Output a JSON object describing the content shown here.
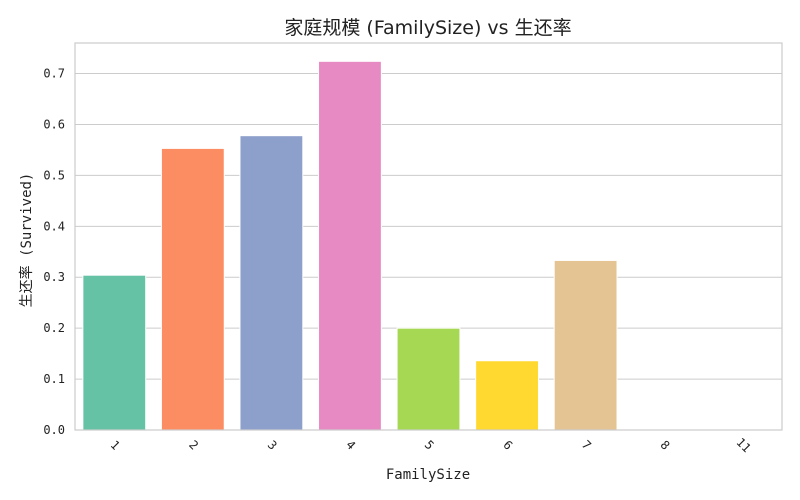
{
  "chart_data": {
    "type": "bar",
    "title": "家庭规模 (FamilySize) vs 生还率",
    "xlabel": "FamilySize",
    "ylabel": "生还率 (Survived)",
    "categories": [
      "1",
      "2",
      "3",
      "4",
      "5",
      "6",
      "7",
      "8",
      "11"
    ],
    "values": [
      0.304,
      0.553,
      0.578,
      0.724,
      0.2,
      0.136,
      0.333,
      0.0,
      0.0
    ],
    "colors": [
      "#66c2a5",
      "#fc8d62",
      "#8da0cb",
      "#e78ac3",
      "#a6d854",
      "#ffd92f",
      "#e5c494",
      "#b3b3b3",
      "#66c2a5"
    ],
    "ylim": [
      0,
      0.76
    ],
    "yticks": [
      0.0,
      0.1,
      0.2,
      0.3,
      0.4,
      0.5,
      0.6,
      0.7
    ],
    "ytick_labels": [
      "0.0",
      "0.1",
      "0.2",
      "0.3",
      "0.4",
      "0.5",
      "0.6",
      "0.7"
    ],
    "grid": "y",
    "legend": "none"
  }
}
